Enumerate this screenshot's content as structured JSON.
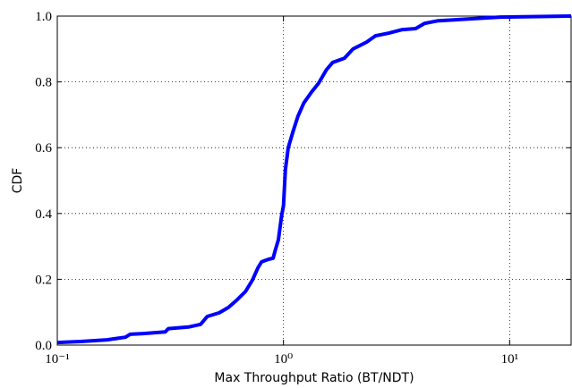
{
  "chart_data": {
    "type": "line",
    "xlabel": "Max Throughput Ratio (BT/NDT)",
    "ylabel": "CDF",
    "xscale": "log",
    "grid": true,
    "xlim": [
      0.1,
      18.7
    ],
    "ylim": [
      0,
      1
    ],
    "xticks": [
      {
        "value": 0.1,
        "label": "10⁻¹"
      },
      {
        "value": 1,
        "label": "10⁰"
      },
      {
        "value": 10,
        "label": "10¹"
      }
    ],
    "yticks": [
      {
        "value": 0,
        "label": "0.0"
      },
      0.2,
      0.4,
      0.6,
      0.8,
      {
        "value": 1,
        "label": "1.0"
      }
    ],
    "series": [
      {
        "name": "CDF",
        "color": "#0000ff",
        "x": [
          0.1,
          0.127,
          0.166,
          0.2,
          0.21,
          0.24,
          0.3,
          0.31,
          0.38,
          0.43,
          0.46,
          0.52,
          0.57,
          0.62,
          0.68,
          0.73,
          0.77,
          0.8,
          0.86,
          0.9,
          0.92,
          0.95,
          0.98,
          1.0,
          1.02,
          1.05,
          1.1,
          1.16,
          1.23,
          1.33,
          1.43,
          1.55,
          1.65,
          1.86,
          2.03,
          2.33,
          2.55,
          2.92,
          3.36,
          3.84,
          4.21,
          4.83,
          6.94,
          9.1,
          18.7
        ],
        "values": [
          0.008,
          0.011,
          0.016,
          0.024,
          0.033,
          0.035,
          0.04,
          0.05,
          0.055,
          0.063,
          0.087,
          0.098,
          0.114,
          0.136,
          0.163,
          0.198,
          0.234,
          0.253,
          0.261,
          0.264,
          0.288,
          0.32,
          0.39,
          0.424,
          0.533,
          0.6,
          0.647,
          0.696,
          0.736,
          0.769,
          0.796,
          0.837,
          0.859,
          0.872,
          0.9,
          0.921,
          0.94,
          0.948,
          0.959,
          0.962,
          0.978,
          0.986,
          0.992,
          0.997,
          1.0
        ]
      }
    ]
  }
}
